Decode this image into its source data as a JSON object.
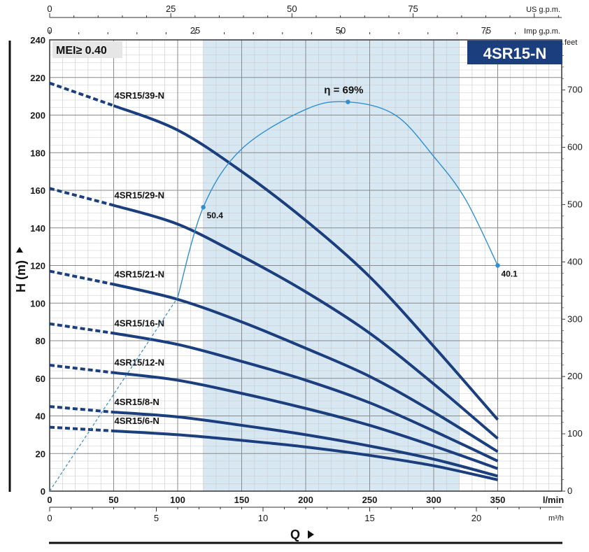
{
  "chart_data": {
    "type": "line",
    "title": "4SR15-N",
    "badge": "MEI≥ 0.40",
    "xlabel": "Q",
    "ylabel": "H (m)",
    "x_unit": "l/min",
    "x_unit_m3h": "m³/h",
    "x_unit_us": "US g.p.m.",
    "x_unit_imp": "Imp g.p.m.",
    "y_unit_right": "feet",
    "xlim": [
      0,
      400
    ],
    "ylim": [
      0,
      240
    ],
    "x_ticks": [
      "0",
      "50",
      "100",
      "150",
      "200",
      "250",
      "300",
      "350"
    ],
    "y_ticks": [
      "0",
      "20",
      "40",
      "60",
      "80",
      "100",
      "120",
      "140",
      "160",
      "180",
      "200",
      "220",
      "240"
    ],
    "m3h_ticks": [
      "0",
      "5",
      "10",
      "15",
      "20"
    ],
    "us_gpm_ticks": [
      "0",
      "25",
      "50",
      "75"
    ],
    "imp_gpm_ticks": [
      "0",
      "25",
      "50",
      "75"
    ],
    "feet_ticks": [
      "0",
      "100",
      "200",
      "300",
      "400",
      "500",
      "600",
      "700"
    ],
    "recommended_range": [
      120,
      320
    ],
    "grid": true,
    "series": [
      {
        "name": "4SR15/39-N",
        "dashed": [
          [
            0,
            217
          ],
          [
            50,
            205
          ]
        ],
        "x": [
          50,
          100,
          150,
          200,
          250,
          300,
          350
        ],
        "y": [
          205,
          192,
          170,
          144,
          114,
          77,
          38
        ]
      },
      {
        "name": "4SR15/29-N",
        "dashed": [
          [
            0,
            161
          ],
          [
            50,
            152
          ]
        ],
        "x": [
          50,
          100,
          150,
          200,
          250,
          300,
          350
        ],
        "y": [
          152,
          142,
          125,
          106,
          84,
          57,
          28
        ]
      },
      {
        "name": "4SR15/21-N",
        "dashed": [
          [
            0,
            117
          ],
          [
            50,
            110
          ]
        ],
        "x": [
          50,
          100,
          150,
          200,
          250,
          300,
          350
        ],
        "y": [
          110,
          102,
          90,
          76,
          61,
          42,
          21
        ]
      },
      {
        "name": "4SR15/16-N",
        "dashed": [
          [
            0,
            89
          ],
          [
            50,
            84
          ]
        ],
        "x": [
          50,
          100,
          150,
          200,
          250,
          300,
          350
        ],
        "y": [
          84,
          78,
          69,
          59,
          47,
          32,
          16
        ]
      },
      {
        "name": "4SR15/12-N",
        "dashed": [
          [
            0,
            67
          ],
          [
            50,
            63
          ]
        ],
        "x": [
          50,
          100,
          150,
          200,
          250,
          300,
          350
        ],
        "y": [
          63,
          59,
          52,
          44,
          35,
          24,
          12
        ]
      },
      {
        "name": "4SR15/8-N",
        "dashed": [
          [
            0,
            45
          ],
          [
            50,
            42
          ]
        ],
        "x": [
          50,
          100,
          150,
          200,
          250,
          300,
          350
        ],
        "y": [
          42,
          39.5,
          35,
          30,
          24,
          17,
          8
        ]
      },
      {
        "name": "4SR15/6-N",
        "dashed": [
          [
            0,
            34
          ],
          [
            50,
            32
          ]
        ],
        "x": [
          50,
          100,
          150,
          200,
          250,
          300,
          350
        ],
        "y": [
          32,
          30,
          27,
          23.5,
          19,
          13.5,
          6
        ]
      }
    ],
    "efficiency": {
      "peak_label": "η = 69%",
      "dashed": [
        [
          0,
          0
        ],
        [
          100,
          103
        ]
      ],
      "x": [
        100,
        120,
        150,
        200,
        233,
        270,
        300,
        325,
        350
      ],
      "y": [
        103,
        151,
        182,
        203,
        207,
        200,
        178,
        155,
        120
      ],
      "points": [
        {
          "x": 120,
          "y": 151,
          "label": "50.4"
        },
        {
          "x": 233,
          "y": 207,
          "label": ""
        },
        {
          "x": 350,
          "y": 120,
          "label": "40.1"
        }
      ]
    },
    "colors": {
      "curve": "#1b3f7e",
      "efficiency": "#2f8fd0",
      "band": "#d8e8f3",
      "title_bg": "#1b3f7e",
      "badge_bg": "#e6e6e6"
    }
  }
}
